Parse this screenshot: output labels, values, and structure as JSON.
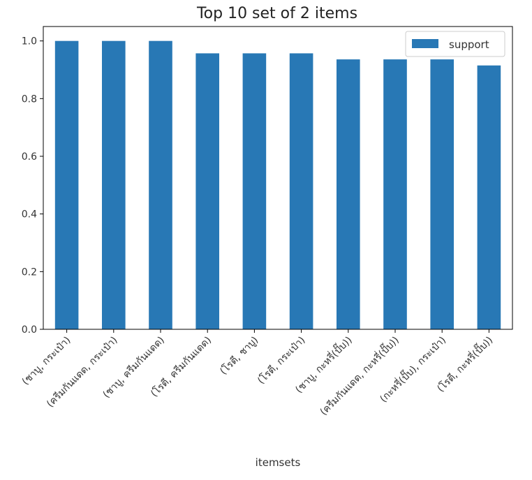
{
  "chart_data": {
    "type": "bar",
    "title": "Top 10 set of 2 items",
    "xlabel": "itemsets",
    "ylabel": "",
    "ylim": [
      0,
      1.05
    ],
    "yticks": [
      "0.0",
      "0.2",
      "0.4",
      "0.6",
      "0.8",
      "1.0"
    ],
    "categories": [
      "(ชาบู, กระเป๋า)",
      "(ครีมกันแดด, กระเป๋า)",
      "(ชาบู, ครีมกันแดด)",
      "(โรตี, ครีมกันแดด)",
      "(โรตี, ชาบู)",
      "(โรตี, กระเป๋า)",
      "(ชาบู, กะหรี่(ปั๊บ))",
      "(ครีมกันแดด, กะหรี่(ปั๊บ))",
      "(กะหรี่(ปั๊บ), กระเป๋า)",
      "(โรตี, กะหรี่(ปั๊บ))"
    ],
    "series": [
      {
        "name": "support",
        "color": "#2878b5",
        "values": [
          1.0,
          1.0,
          1.0,
          0.957,
          0.957,
          0.957,
          0.936,
          0.936,
          0.936,
          0.915
        ]
      }
    ],
    "legend_position": "top-right",
    "grid": false
  }
}
